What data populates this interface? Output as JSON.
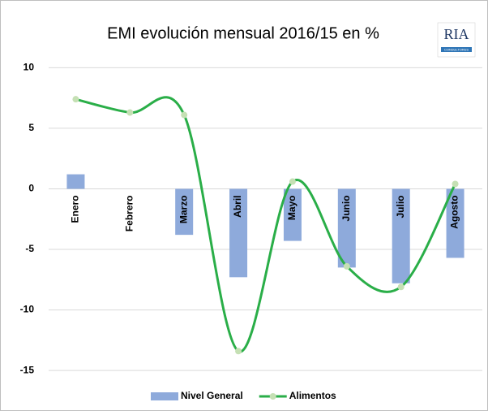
{
  "chart_data": {
    "type": "bar_line",
    "title": "EMI evolución mensual 2016/15 en %",
    "logo": {
      "name": "RIA",
      "sub": "CONSULTORES"
    },
    "categories": [
      "Enero",
      "Febrero",
      "Marzo",
      "Abril",
      "Mayo",
      "Junio",
      "Julio",
      "Agosto"
    ],
    "series": [
      {
        "name": "Nivel General",
        "kind": "bar",
        "color": "#8eaadb",
        "values": [
          1.2,
          0,
          -3.8,
          -7.3,
          -4.3,
          -6.5,
          -7.8,
          -5.7
        ]
      },
      {
        "name": "Alimentos",
        "kind": "line",
        "color": "#2aae48",
        "marker_color": "#c5e0b4",
        "values": [
          7.4,
          6.3,
          6.1,
          -13.4,
          0.6,
          -6.4,
          -8.1,
          0.4
        ]
      }
    ],
    "ylim": [
      -16.2,
      11.3
    ],
    "yticks": [
      -15,
      -10,
      -5,
      0,
      5,
      10
    ],
    "grid": true,
    "legend": "bottom"
  }
}
